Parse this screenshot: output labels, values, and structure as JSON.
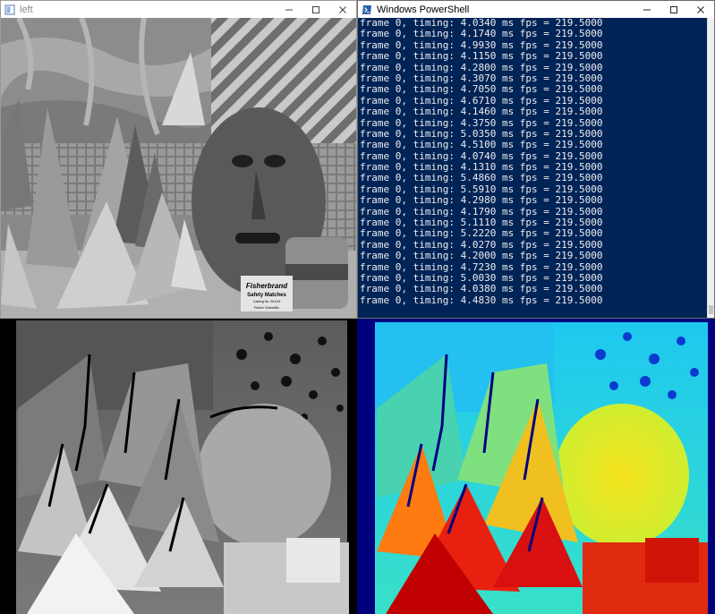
{
  "left_window": {
    "title": "left",
    "icon": "image-window-icon",
    "controls": [
      "minimize-icon",
      "maximize-icon",
      "close-icon"
    ],
    "image_label": {
      "brand": "Fisherbrand",
      "product": "Safety Matches",
      "catalog": "Catalog No. 05-619",
      "maker": "Fisher Scientific"
    }
  },
  "powershell_window": {
    "title": "Windows PowerShell",
    "icon": "powershell-icon",
    "controls": [
      "minimize-icon",
      "maximize-icon",
      "close-icon"
    ],
    "lines": [
      "frame 0, timing: 4.0340 ms fps = 219.5000",
      "frame 0, timing: 4.1740 ms fps = 219.5000",
      "frame 0, timing: 4.9930 ms fps = 219.5000",
      "frame 0, timing: 4.1150 ms fps = 219.5000",
      "frame 0, timing: 4.2800 ms fps = 219.5000",
      "frame 0, timing: 4.3070 ms fps = 219.5000",
      "frame 0, timing: 4.7050 ms fps = 219.5000",
      "frame 0, timing: 4.6710 ms fps = 219.5000",
      "frame 0, timing: 4.1460 ms fps = 219.5000",
      "frame 0, timing: 4.3750 ms fps = 219.5000",
      "frame 0, timing: 5.0350 ms fps = 219.5000",
      "frame 0, timing: 4.5100 ms fps = 219.5000",
      "frame 0, timing: 4.0740 ms fps = 219.5000",
      "frame 0, timing: 4.1310 ms fps = 219.5000",
      "frame 0, timing: 5.4860 ms fps = 219.5000",
      "frame 0, timing: 5.5910 ms fps = 219.5000",
      "frame 0, timing: 4.2980 ms fps = 219.5000",
      "frame 0, timing: 4.1790 ms fps = 219.5000",
      "frame 0, timing: 5.1110 ms fps = 219.5000",
      "frame 0, timing: 5.2220 ms fps = 219.5000",
      "frame 0, timing: 4.0270 ms fps = 219.5000",
      "frame 0, timing: 4.2000 ms fps = 219.5000",
      "frame 0, timing: 4.7230 ms fps = 219.5000",
      "frame 0, timing: 5.0030 ms fps = 219.5000",
      "frame 0, timing: 4.0380 ms fps = 219.5000",
      "frame 0, timing: 4.4830 ms fps = 219.5000"
    ]
  },
  "colors": {
    "console_bg": "#012456",
    "console_fg": "#eeedf0",
    "title_bar": "#ffffff",
    "jet_low": "#00007f",
    "jet_high": "#7f0000"
  }
}
